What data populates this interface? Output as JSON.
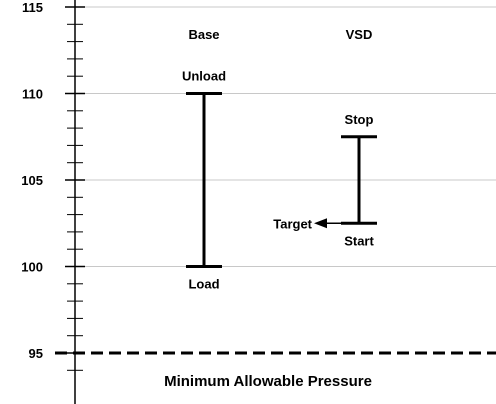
{
  "chart_data": {
    "type": "range",
    "ylim": [
      94,
      116
    ],
    "y_major_ticks": [
      95,
      100,
      105,
      110,
      115
    ],
    "y_major_tick_labels": [
      "95",
      "100",
      "105",
      "110",
      "115"
    ],
    "y_minor_step": 1,
    "grid": "horizontal major",
    "columns": [
      {
        "header": "Base",
        "low": 100,
        "high": 110,
        "low_label": "Load",
        "high_label": "Unload"
      },
      {
        "header": "VSD",
        "low": 102.5,
        "high": 107.5,
        "low_label": "Start",
        "high_label": "Stop"
      }
    ],
    "target": {
      "label": "Target",
      "value": 102.5
    },
    "reference_line": {
      "value": 95,
      "style": "dashed",
      "label": "Minimum Allowable Pressure"
    }
  }
}
